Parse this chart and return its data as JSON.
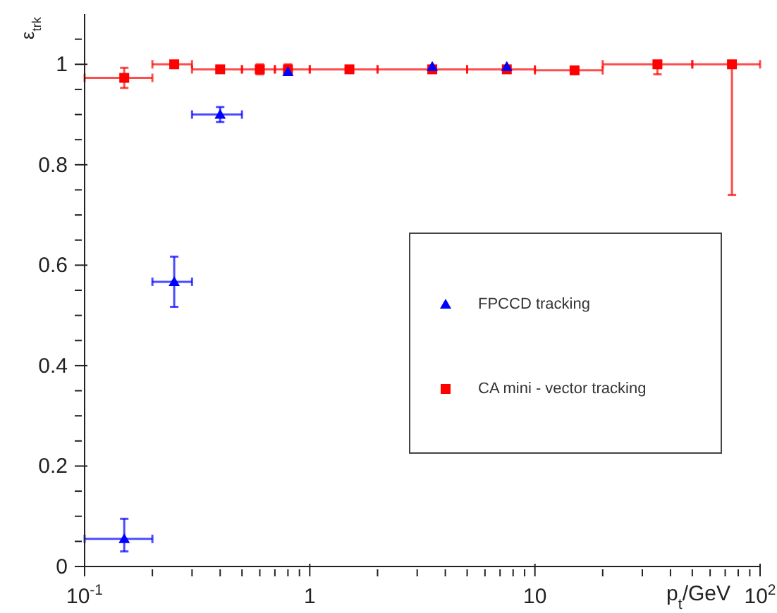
{
  "chart_data": {
    "type": "scatter",
    "ylabel": "ε$_{trk}$",
    "xlabel": "p$_{t}$/GeV",
    "log": "x",
    "xlim": [
      0.1,
      100
    ],
    "ylim": [
      0,
      1.1
    ],
    "xticks": [
      {
        "value": 0.1,
        "label": "10$^{-1}$"
      },
      {
        "value": 0.2,
        "label": null
      },
      {
        "value": 0.3,
        "label": null
      },
      {
        "value": 0.4,
        "label": null
      },
      {
        "value": 0.5,
        "label": null
      },
      {
        "value": 0.6,
        "label": null
      },
      {
        "value": 0.7,
        "label": null
      },
      {
        "value": 0.8,
        "label": null
      },
      {
        "value": 0.9,
        "label": null
      },
      {
        "value": 1,
        "label": "1"
      },
      {
        "value": 2,
        "label": null
      },
      {
        "value": 3,
        "label": null
      },
      {
        "value": 4,
        "label": null
      },
      {
        "value": 5,
        "label": null
      },
      {
        "value": 6,
        "label": null
      },
      {
        "value": 7,
        "label": null
      },
      {
        "value": 8,
        "label": null
      },
      {
        "value": 9,
        "label": null
      },
      {
        "value": 10,
        "label": "10"
      },
      {
        "value": 20,
        "label": null
      },
      {
        "value": 30,
        "label": null
      },
      {
        "value": 40,
        "label": null
      },
      {
        "value": 50,
        "label": null
      },
      {
        "value": 60,
        "label": null
      },
      {
        "value": 70,
        "label": null
      },
      {
        "value": 80,
        "label": null
      },
      {
        "value": 90,
        "label": null
      },
      {
        "value": 100,
        "label": "10$^{2}$"
      }
    ],
    "yticks": [
      0,
      {
        "value": 0.05,
        "label": null
      },
      {
        "value": 0.1,
        "label": null
      },
      {
        "value": 0.15,
        "label": null
      },
      0.2,
      {
        "value": 0.25,
        "label": null
      },
      {
        "value": 0.3,
        "label": null
      },
      {
        "value": 0.35,
        "label": null
      },
      0.4,
      {
        "value": 0.45,
        "label": null
      },
      {
        "value": 0.5,
        "label": null
      },
      {
        "value": 0.55,
        "label": null
      },
      0.6,
      {
        "value": 0.65,
        "label": null
      },
      {
        "value": 0.7,
        "label": null
      },
      {
        "value": 0.75,
        "label": null
      },
      0.8,
      {
        "value": 0.85,
        "label": null
      },
      {
        "value": 0.9,
        "label": null
      },
      {
        "value": 0.95,
        "label": null
      },
      1,
      {
        "value": 1.05,
        "label": null
      }
    ],
    "grid": false,
    "legend": "right",
    "series": [
      {
        "name": "CA mini - vector tracking",
        "color": "#ff0000",
        "marker": "square",
        "x": [
          0.15,
          0.25,
          0.4,
          0.6,
          0.8,
          1.5,
          3.5,
          7.5,
          15,
          35,
          75
        ],
        "values": [
          0.973,
          1.0,
          0.99,
          0.99,
          0.99,
          0.99,
          0.99,
          0.99,
          0.988,
          1.0,
          1.0
        ],
        "errors": [
          0.02,
          0.005,
          0.005,
          0.01,
          0.01,
          0.005,
          0.005,
          0.005,
          0.005,
          [
            0.98,
            1.003
          ],
          [
            0.74,
            1.005
          ]
        ],
        "xerrors": [
          [
            0.1,
            0.2
          ],
          [
            0.2,
            0.3
          ],
          [
            0.3,
            0.5
          ],
          [
            0.5,
            0.7
          ],
          [
            0.7,
            1.0
          ],
          [
            1,
            2
          ],
          [
            2,
            5
          ],
          [
            5,
            10
          ],
          [
            10,
            20
          ],
          [
            20,
            50
          ],
          [
            50,
            100
          ]
        ]
      },
      {
        "name": "FPCCD tracking",
        "color": "#0000ff",
        "marker": "triangle",
        "x": [
          0.15,
          0.25,
          0.4,
          0.8,
          3.5,
          7.5
        ],
        "values": [
          0.055,
          0.567,
          0.9,
          0.985,
          0.995,
          0.995
        ],
        "errors": [
          [
            0.03,
            0.095
          ],
          0.05,
          0.015,
          null,
          null,
          null
        ],
        "xerrors": [
          [
            0.1,
            0.2
          ],
          [
            0.2,
            0.3
          ],
          [
            0.3,
            0.5
          ],
          null,
          null,
          null
        ]
      }
    ]
  }
}
